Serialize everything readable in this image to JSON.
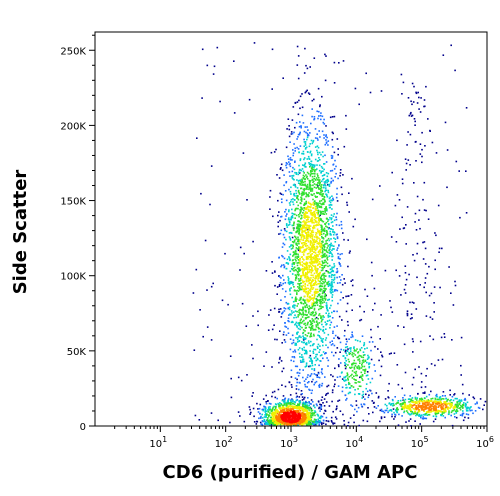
{
  "chart_data": {
    "type": "scatter",
    "subtype": "flow-cytometry-density-dot-plot",
    "title": "",
    "xlabel": "CD6 (purified) / GAM APC",
    "ylabel": "Side Scatter",
    "x_scale": "log",
    "xlim": [
      1,
      1000000
    ],
    "ylim": [
      0,
      262144
    ],
    "x_ticks": [
      {
        "value": 10,
        "base": "10",
        "exp": "1"
      },
      {
        "value": 100,
        "base": "10",
        "exp": "2"
      },
      {
        "value": 1000,
        "base": "10",
        "exp": "3"
      },
      {
        "value": 10000,
        "base": "10",
        "exp": "4"
      },
      {
        "value": 100000,
        "base": "10",
        "exp": "5"
      },
      {
        "value": 1000000,
        "base": "10",
        "exp": "6"
      }
    ],
    "y_ticks": [
      {
        "value": 0,
        "label": "0"
      },
      {
        "value": 50000,
        "label": "50K"
      },
      {
        "value": 100000,
        "label": "100K"
      },
      {
        "value": 150000,
        "label": "150K"
      },
      {
        "value": 200000,
        "label": "200K"
      },
      {
        "value": 250000,
        "label": "250K"
      }
    ],
    "grid": false,
    "density_colors": [
      "#00008b",
      "#1f6fff",
      "#00d0d0",
      "#30e030",
      "#f0f000",
      "#ff8000",
      "#ff0000"
    ],
    "populations": [
      {
        "id": "lymphocytes",
        "x_center": 1000,
        "y_center": 6000,
        "n": 1300
      },
      {
        "id": "granulocytes",
        "x_center": 2000,
        "y_center": 115000,
        "n": 2600
      },
      {
        "id": "monocytes",
        "x_center": 10000,
        "y_center": 38000,
        "n": 260
      },
      {
        "id": "cd6-positive",
        "x_center": 130000,
        "y_center": 13000,
        "n": 650
      }
    ]
  }
}
